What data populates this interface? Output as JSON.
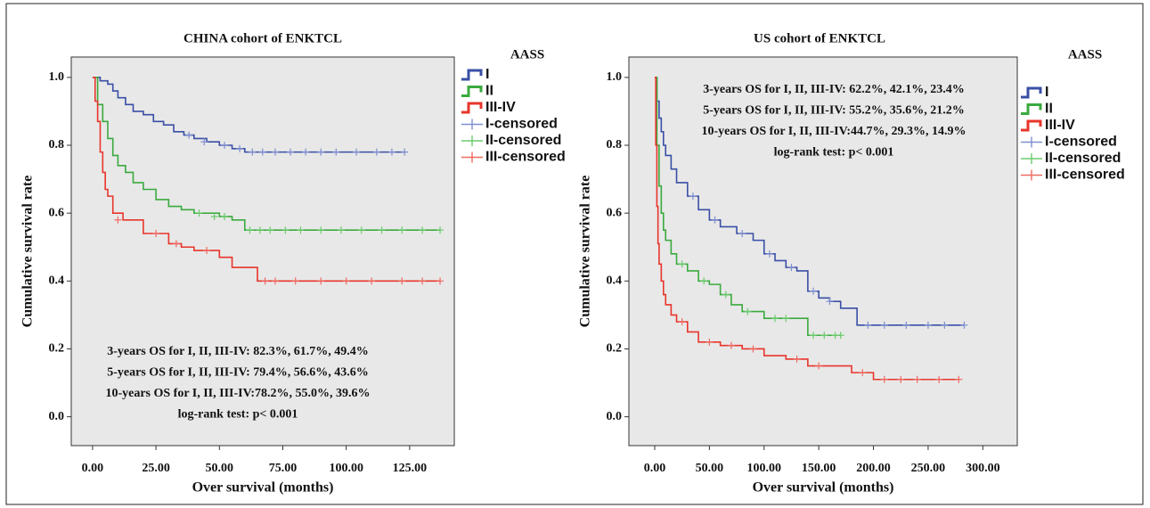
{
  "chart_data": [
    {
      "type": "step",
      "title": "CHINA cohort of ENKTCL",
      "x_label": "Over survival (months)",
      "y_label": "Cumulative survival rate",
      "legend_title": "AASS",
      "annotation_corner": "bottom",
      "annotations": [
        "3-years OS for I, II, III-IV: 82.3%, 61.7%, 49.4%",
        "5-years OS for I, II, III-IV: 79.4%, 56.6%, 43.6%",
        "10-years OS for I, II, III-IV:78.2%, 55.0%, 39.6%",
        "log-rank test: p< 0.001"
      ],
      "xlim": [
        -8.4,
        142.6
      ],
      "ylim": [
        -0.085,
        1.06
      ],
      "xticks": [
        {
          "value": 0,
          "label": "0.00"
        },
        {
          "value": 25,
          "label": "25.00"
        },
        {
          "value": 50,
          "label": "50.00"
        },
        {
          "value": 75,
          "label": "75.00"
        },
        {
          "value": 100,
          "label": "100.00"
        },
        {
          "value": 125,
          "label": "125.00"
        }
      ],
      "yticks": [
        {
          "value": 0,
          "label": "0.0"
        },
        {
          "value": 0.2,
          "label": "0.2"
        },
        {
          "value": 0.4,
          "label": "0.4"
        },
        {
          "value": 0.6,
          "label": "0.6"
        },
        {
          "value": 0.8,
          "label": "0.8"
        },
        {
          "value": 1,
          "label": "1.0"
        }
      ],
      "series": [
        {
          "name": "I",
          "color": "#3a4fa6",
          "x": [
            0,
            3,
            6,
            8,
            10,
            13,
            16,
            20,
            24,
            28,
            32,
            36,
            40,
            45,
            50,
            55,
            60,
            123
          ],
          "values": [
            1.0,
            0.99,
            0.98,
            0.96,
            0.94,
            0.92,
            0.9,
            0.89,
            0.87,
            0.86,
            0.84,
            0.83,
            0.82,
            0.81,
            0.8,
            0.79,
            0.78,
            0.78
          ]
        },
        {
          "name": "II",
          "color": "#3aaa3e",
          "x": [
            0,
            2,
            4,
            6,
            8,
            10,
            13,
            16,
            20,
            25,
            30,
            35,
            40,
            50,
            55,
            60,
            137
          ],
          "values": [
            1.0,
            0.92,
            0.87,
            0.82,
            0.77,
            0.74,
            0.72,
            0.69,
            0.67,
            0.64,
            0.62,
            0.61,
            0.6,
            0.59,
            0.58,
            0.55,
            0.55
          ]
        },
        {
          "name": "III-IV",
          "color": "#e8352b",
          "x": [
            0,
            1,
            2,
            3,
            4,
            5,
            6,
            8,
            12,
            20,
            30,
            35,
            40,
            50,
            55,
            65,
            137
          ],
          "values": [
            1.0,
            0.93,
            0.87,
            0.78,
            0.72,
            0.67,
            0.65,
            0.6,
            0.58,
            0.54,
            0.51,
            0.5,
            0.49,
            0.47,
            0.44,
            0.4,
            0.4
          ]
        },
        {
          "name": "I-censored",
          "color": "#7f8fd0",
          "marker": "+",
          "x": [
            38,
            44,
            52,
            58,
            63,
            67,
            72,
            78,
            84,
            90,
            96,
            104,
            112,
            118,
            123
          ],
          "values": [
            0.83,
            0.81,
            0.8,
            0.79,
            0.78,
            0.78,
            0.78,
            0.78,
            0.78,
            0.78,
            0.78,
            0.78,
            0.78,
            0.78,
            0.78
          ]
        },
        {
          "name": "II-censored",
          "color": "#6ccb6e",
          "marker": "+",
          "x": [
            42,
            48,
            52,
            62,
            66,
            70,
            76,
            82,
            90,
            98,
            106,
            114,
            122,
            130,
            137
          ],
          "values": [
            0.6,
            0.59,
            0.59,
            0.55,
            0.55,
            0.55,
            0.55,
            0.55,
            0.55,
            0.55,
            0.55,
            0.55,
            0.55,
            0.55,
            0.55
          ]
        },
        {
          "name": "III-censored",
          "color": "#ef6a62",
          "marker": "+",
          "x": [
            10,
            25,
            33,
            45,
            68,
            72,
            80,
            90,
            100,
            110,
            122,
            130,
            137
          ],
          "values": [
            0.58,
            0.54,
            0.51,
            0.49,
            0.4,
            0.4,
            0.4,
            0.4,
            0.4,
            0.4,
            0.4,
            0.4,
            0.4
          ]
        }
      ]
    },
    {
      "type": "step",
      "title": "US cohort of ENKTCL",
      "x_label": "Over survival (months)",
      "y_label": "Cumulative survival rate",
      "legend_title": "AASS",
      "annotation_corner": "top",
      "annotations": [
        "3-years OS for I, II, III-IV: 62.2%, 42.1%, 23.4%",
        "5-years OS for I, II, III-IV: 55.2%, 35.6%, 21.2%",
        "10-years OS for I, II, III-IV:44.7%, 29.3%, 14.9%",
        "log-rank test: p< 0.001"
      ],
      "xlim": [
        -23.6,
        331.5
      ],
      "ylim": [
        -0.085,
        1.06
      ],
      "xticks": [
        {
          "value": 0,
          "label": "0.00"
        },
        {
          "value": 50,
          "label": "50.00"
        },
        {
          "value": 100,
          "label": "100.00"
        },
        {
          "value": 150,
          "label": "150.00"
        },
        {
          "value": 200,
          "label": "200.00"
        },
        {
          "value": 250,
          "label": "250.00"
        },
        {
          "value": 300,
          "label": "300.00"
        }
      ],
      "yticks": [
        {
          "value": 0,
          "label": "0.0"
        },
        {
          "value": 0.2,
          "label": "0.2"
        },
        {
          "value": 0.4,
          "label": "0.4"
        },
        {
          "value": 0.6,
          "label": "0.6"
        },
        {
          "value": 0.8,
          "label": "0.8"
        },
        {
          "value": 1,
          "label": "1.0"
        }
      ],
      "series": [
        {
          "name": "I",
          "color": "#3a4fa6",
          "x": [
            0,
            2,
            4,
            6,
            8,
            10,
            15,
            20,
            30,
            40,
            50,
            60,
            75,
            90,
            100,
            110,
            120,
            130,
            140,
            150,
            160,
            170,
            185,
            283
          ],
          "values": [
            1.0,
            0.93,
            0.88,
            0.84,
            0.8,
            0.77,
            0.73,
            0.69,
            0.65,
            0.61,
            0.58,
            0.56,
            0.54,
            0.52,
            0.48,
            0.46,
            0.44,
            0.43,
            0.37,
            0.35,
            0.34,
            0.32,
            0.27,
            0.27
          ]
        },
        {
          "name": "II",
          "color": "#3aaa3e",
          "x": [
            0,
            2,
            4,
            6,
            8,
            10,
            15,
            20,
            30,
            40,
            50,
            60,
            70,
            80,
            100,
            130,
            140,
            170
          ],
          "values": [
            1.0,
            0.8,
            0.68,
            0.6,
            0.55,
            0.52,
            0.48,
            0.45,
            0.43,
            0.4,
            0.39,
            0.36,
            0.33,
            0.31,
            0.29,
            0.29,
            0.24,
            0.24
          ]
        },
        {
          "name": "III-IV",
          "color": "#e8352b",
          "x": [
            0,
            1,
            2,
            3,
            4,
            6,
            8,
            10,
            15,
            20,
            30,
            40,
            60,
            80,
            100,
            120,
            140,
            160,
            180,
            200,
            278
          ],
          "values": [
            1.0,
            0.8,
            0.62,
            0.51,
            0.45,
            0.4,
            0.36,
            0.33,
            0.3,
            0.28,
            0.25,
            0.22,
            0.21,
            0.2,
            0.18,
            0.17,
            0.15,
            0.15,
            0.13,
            0.11,
            0.11
          ]
        },
        {
          "name": "I-censored",
          "color": "#7f8fd0",
          "marker": "+",
          "x": [
            35,
            55,
            80,
            105,
            125,
            145,
            160,
            195,
            210,
            230,
            250,
            265,
            283
          ],
          "values": [
            0.65,
            0.58,
            0.54,
            0.48,
            0.44,
            0.37,
            0.34,
            0.27,
            0.27,
            0.27,
            0.27,
            0.27,
            0.27
          ]
        },
        {
          "name": "II-censored",
          "color": "#6ccb6e",
          "marker": "+",
          "x": [
            25,
            45,
            65,
            85,
            110,
            120,
            145,
            155,
            165,
            170
          ],
          "values": [
            0.45,
            0.4,
            0.36,
            0.31,
            0.29,
            0.29,
            0.24,
            0.24,
            0.24,
            0.24
          ]
        },
        {
          "name": "III-censored",
          "color": "#ef6a62",
          "marker": "+",
          "x": [
            25,
            50,
            70,
            90,
            130,
            150,
            190,
            210,
            225,
            240,
            260,
            278
          ],
          "values": [
            0.28,
            0.22,
            0.21,
            0.2,
            0.17,
            0.15,
            0.13,
            0.11,
            0.11,
            0.11,
            0.11,
            0.11
          ]
        }
      ]
    }
  ]
}
